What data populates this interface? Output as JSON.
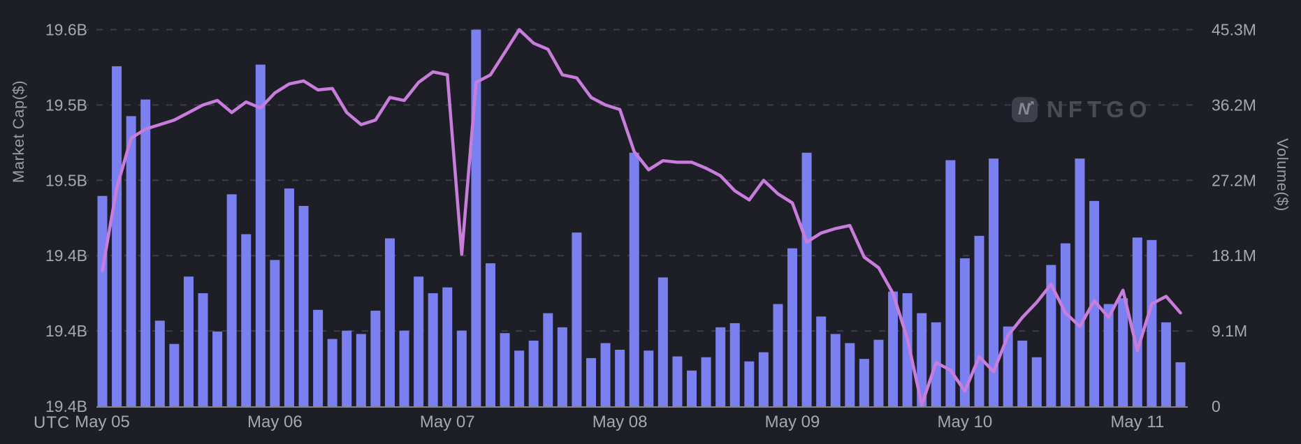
{
  "watermark": {
    "brand": "NFTGO",
    "icon": "n-arrow-logo"
  },
  "axes": {
    "left_title": "Market Cap($)",
    "right_title": "Volume($)",
    "timezone_label": "UTC",
    "left_tick_labels": [
      "19.6B",
      "19.5B",
      "19.5B",
      "19.4B",
      "19.4B",
      "19.4B"
    ],
    "right_tick_labels": [
      "45.3M",
      "36.2M",
      "27.2M",
      "18.1M",
      "9.1M",
      "0"
    ],
    "x_tick_labels": [
      "May 05",
      "May 06",
      "May 07",
      "May 08",
      "May 09",
      "May 10",
      "May 11"
    ]
  },
  "colors": {
    "background": "#1e1f26",
    "bar": "#7a80ef",
    "line": "#c87ddc",
    "gridline": "#3c3d45",
    "axis_line": "#82838c",
    "tick_text": "#a6a7b2",
    "axis_title_text": "#9a9ba6",
    "watermark_text": "#4a4d56",
    "watermark_icon_bg": "#3e414b",
    "watermark_icon_glyph": "#868995"
  },
  "chart_data": {
    "type": "combo",
    "title": "",
    "x_start": "May 05 00:00 UTC",
    "x_interval_hours": 2,
    "points_per_day": 12,
    "day_tick_indices": [
      0,
      12,
      24,
      36,
      48,
      60,
      72
    ],
    "left_axis": {
      "label": "Market Cap($)",
      "min": 19.35,
      "max": 19.6,
      "tick_step": 0.05,
      "unit": "B$"
    },
    "right_axis": {
      "label": "Volume($)",
      "min": 0,
      "max": 45.3,
      "tick_step": 9.06,
      "unit": "M$"
    },
    "grid": "horizontal-dashed",
    "legend": "none",
    "series": [
      {
        "name": "Market Cap($)",
        "type": "line",
        "axis": "left",
        "unit": "B",
        "values": [
          19.44,
          19.495,
          19.528,
          19.534,
          19.537,
          19.54,
          19.545,
          19.55,
          19.553,
          19.545,
          19.552,
          19.548,
          19.558,
          19.564,
          19.566,
          19.56,
          19.561,
          19.545,
          19.537,
          19.54,
          19.555,
          19.553,
          19.565,
          19.572,
          19.57,
          19.451,
          19.565,
          19.57,
          19.585,
          19.6,
          19.591,
          19.587,
          19.57,
          19.568,
          19.555,
          19.55,
          19.547,
          19.519,
          19.507,
          19.513,
          19.512,
          19.512,
          19.508,
          19.503,
          19.493,
          19.487,
          19.5,
          19.491,
          19.485,
          19.459,
          19.465,
          19.468,
          19.47,
          19.449,
          19.442,
          19.425,
          19.395,
          19.351,
          19.379,
          19.374,
          19.36,
          19.383,
          19.373,
          19.397,
          19.409,
          19.419,
          19.431,
          19.412,
          19.403,
          19.42,
          19.409,
          19.427,
          19.387,
          19.418,
          19.423,
          19.412
        ]
      },
      {
        "name": "Volume($)",
        "type": "bar",
        "axis": "right",
        "unit": "M",
        "values": [
          25.3,
          40.9,
          34.9,
          36.9,
          10.3,
          7.5,
          15.6,
          13.6,
          9.0,
          25.5,
          20.7,
          41.1,
          17.6,
          26.2,
          24.1,
          11.6,
          8.1,
          9.1,
          8.7,
          11.5,
          20.2,
          9.1,
          15.6,
          13.6,
          14.3,
          9.1,
          45.3,
          17.2,
          8.8,
          6.7,
          7.9,
          11.2,
          9.5,
          20.9,
          5.8,
          7.6,
          6.8,
          30.5,
          6.7,
          15.5,
          6.0,
          4.3,
          5.9,
          9.5,
          10.0,
          5.4,
          6.5,
          12.3,
          19.0,
          30.5,
          10.8,
          8.7,
          7.6,
          5.7,
          8.0,
          13.8,
          13.6,
          11.2,
          10.1,
          29.6,
          17.8,
          20.5,
          29.8,
          9.6,
          7.9,
          5.9,
          17.0,
          19.6,
          29.8,
          24.7,
          12.3,
          13.0,
          20.3,
          20.0,
          10.1,
          5.3
        ]
      }
    ]
  }
}
